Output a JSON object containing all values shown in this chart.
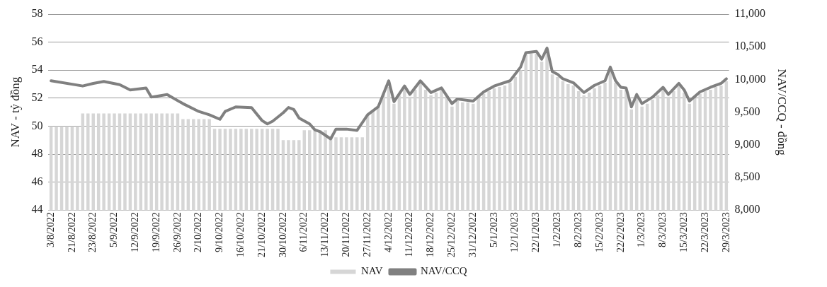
{
  "chart_data": {
    "type": "bar",
    "categories": [
      "3/8/2022",
      null,
      null,
      null,
      "21/8/2022",
      null,
      null,
      null,
      "23/8/2022",
      null,
      null,
      null,
      "5/9/2022",
      null,
      null,
      null,
      "12/9/2022",
      null,
      null,
      null,
      "19/9/2022",
      null,
      null,
      null,
      "26/9/2022",
      null,
      null,
      null,
      "2/10/2022",
      null,
      null,
      null,
      "9/10/2022",
      null,
      null,
      null,
      "16/10/2022",
      null,
      null,
      null,
      "21/10/2022",
      null,
      null,
      null,
      "30/10/2022",
      null,
      null,
      null,
      "6/11/2022",
      null,
      null,
      null,
      "13/11/2022",
      null,
      null,
      null,
      "20/11/2022",
      null,
      null,
      null,
      "27/11/2022",
      null,
      null,
      null,
      "4/12/2022",
      null,
      null,
      null,
      "11/12/2022",
      null,
      null,
      null,
      "18/12/2022",
      null,
      null,
      null,
      "25/12/2022",
      null,
      null,
      null,
      "31/12/2022",
      null,
      null,
      null,
      "5/1/2023",
      null,
      null,
      null,
      "12/1/2023",
      null,
      null,
      null,
      "22/1/2023",
      null,
      null,
      null,
      "1/2/2023",
      null,
      null,
      null,
      "8/2/2023",
      null,
      null,
      null,
      "15/2/2023",
      null,
      null,
      null,
      "22/2/2023",
      null,
      null,
      null,
      "1/3/2023",
      null,
      null,
      null,
      "8/3/2023",
      null,
      null,
      null,
      "15/3/2023",
      null,
      null,
      null,
      "22/3/2023",
      null,
      null,
      null,
      "29/3/2023"
    ],
    "series": [
      {
        "name": "NAV",
        "color": "#d6d6d6",
        "values": [
          50.0,
          50.0,
          50.0,
          50.0,
          50.0,
          50.0,
          50.9,
          50.9,
          50.9,
          50.9,
          50.9,
          50.9,
          50.9,
          50.9,
          50.9,
          50.9,
          50.9,
          50.9,
          50.9,
          50.9,
          50.9,
          50.9,
          50.9,
          50.9,
          50.9,
          50.5,
          50.5,
          50.5,
          50.5,
          50.5,
          50.5,
          49.8,
          49.8,
          49.8,
          49.8,
          49.8,
          49.8,
          49.8,
          49.8,
          49.8,
          49.8,
          49.8,
          49.8,
          49.8,
          49.0,
          49.0,
          49.0,
          49.0,
          49.7,
          49.7,
          49.7,
          49.7,
          49.7,
          49.2,
          49.2,
          49.2,
          49.2,
          49.2,
          49.2,
          49.2,
          50.8,
          51.1,
          51.4,
          52.3,
          52.8,
          51.6,
          52.2,
          52.7,
          52.1,
          52.6,
          53.1,
          52.6,
          52.2,
          52.4,
          52.6,
          52.1,
          51.4,
          51.8,
          51.7,
          51.7,
          51.6,
          52.0,
          52.3,
          52.5,
          52.7,
          52.8,
          52.9,
          53.1,
          53.5,
          54.0,
          55.1,
          55.2,
          55.2,
          54.6,
          55.4,
          53.7,
          53.5,
          53.2,
          53.0,
          52.9,
          52.5,
          52.2,
          52.4,
          52.7,
          52.9,
          53.1,
          54.0,
          53.1,
          52.6,
          52.6,
          51.2,
          52.1,
          51.4,
          51.6,
          51.9,
          52.2,
          52.6,
          52.1,
          52.5,
          52.9,
          52.4,
          51.6,
          52.0,
          52.3,
          52.5,
          52.6,
          52.8,
          52.9,
          53.2
        ]
      },
      {
        "name": "NAV/CCQ",
        "type": "line",
        "axis": "y2",
        "color": "#808080",
        "values": [
          9980,
          null,
          null,
          null,
          null,
          null,
          9900,
          null,
          9940,
          null,
          9970,
          null,
          null,
          9920,
          null,
          9840,
          null,
          null,
          9870,
          9730,
          null,
          null,
          9770,
          null,
          null,
          9630,
          null,
          null,
          9510,
          null,
          9460,
          null,
          9390,
          9510,
          null,
          9580,
          null,
          null,
          9570,
          null,
          9370,
          9320,
          9360,
          null,
          9490,
          9570,
          9540,
          9410,
          null,
          9320,
          9230,
          9200,
          null,
          9090,
          9240,
          null,
          9240,
          null,
          9220,
          null,
          9460,
          null,
          9580,
          null,
          9980,
          9660,
          null,
          9900,
          9770,
          null,
          9980,
          null,
          9800,
          null,
          9870,
          null,
          9630,
          9700,
          null,
          null,
          9670,
          null,
          9810,
          null,
          9900,
          null,
          null,
          9980,
          null,
          10190,
          10410,
          null,
          10430,
          10310,
          10480,
          10120,
          10080,
          10010,
          null,
          9950,
          null,
          9800,
          null,
          9910,
          null,
          9980,
          10190,
          9980,
          9880,
          9870,
          9580,
          9770,
          9630,
          null,
          9730,
          null,
          9880,
          9770,
          null,
          9940,
          9840,
          9670,
          null,
          9810,
          null,
          9880,
          null,
          9940,
          10010
        ]
      }
    ],
    "ylabel": "NAV - tỷ đồng",
    "y2label": "NAV/CCQ - đồng",
    "ylim": [
      44,
      58
    ],
    "yticks": [
      44,
      46,
      48,
      50,
      52,
      54,
      56,
      58
    ],
    "y2lim": [
      8000,
      11000
    ],
    "y2ticks": [
      {
        "value": 8000,
        "label": "8,000"
      },
      {
        "value": 8500,
        "label": "8,500"
      },
      {
        "value": 9000,
        "label": "9,000"
      },
      {
        "value": 9500,
        "label": "9,500"
      },
      {
        "value": 10000,
        "label": "10,000"
      },
      {
        "value": 10500,
        "label": "10,500"
      },
      {
        "value": 11000,
        "label": "11,000"
      }
    ],
    "grid": "y",
    "legend": "bottom",
    "marker": "none",
    "line_style": "solid"
  }
}
